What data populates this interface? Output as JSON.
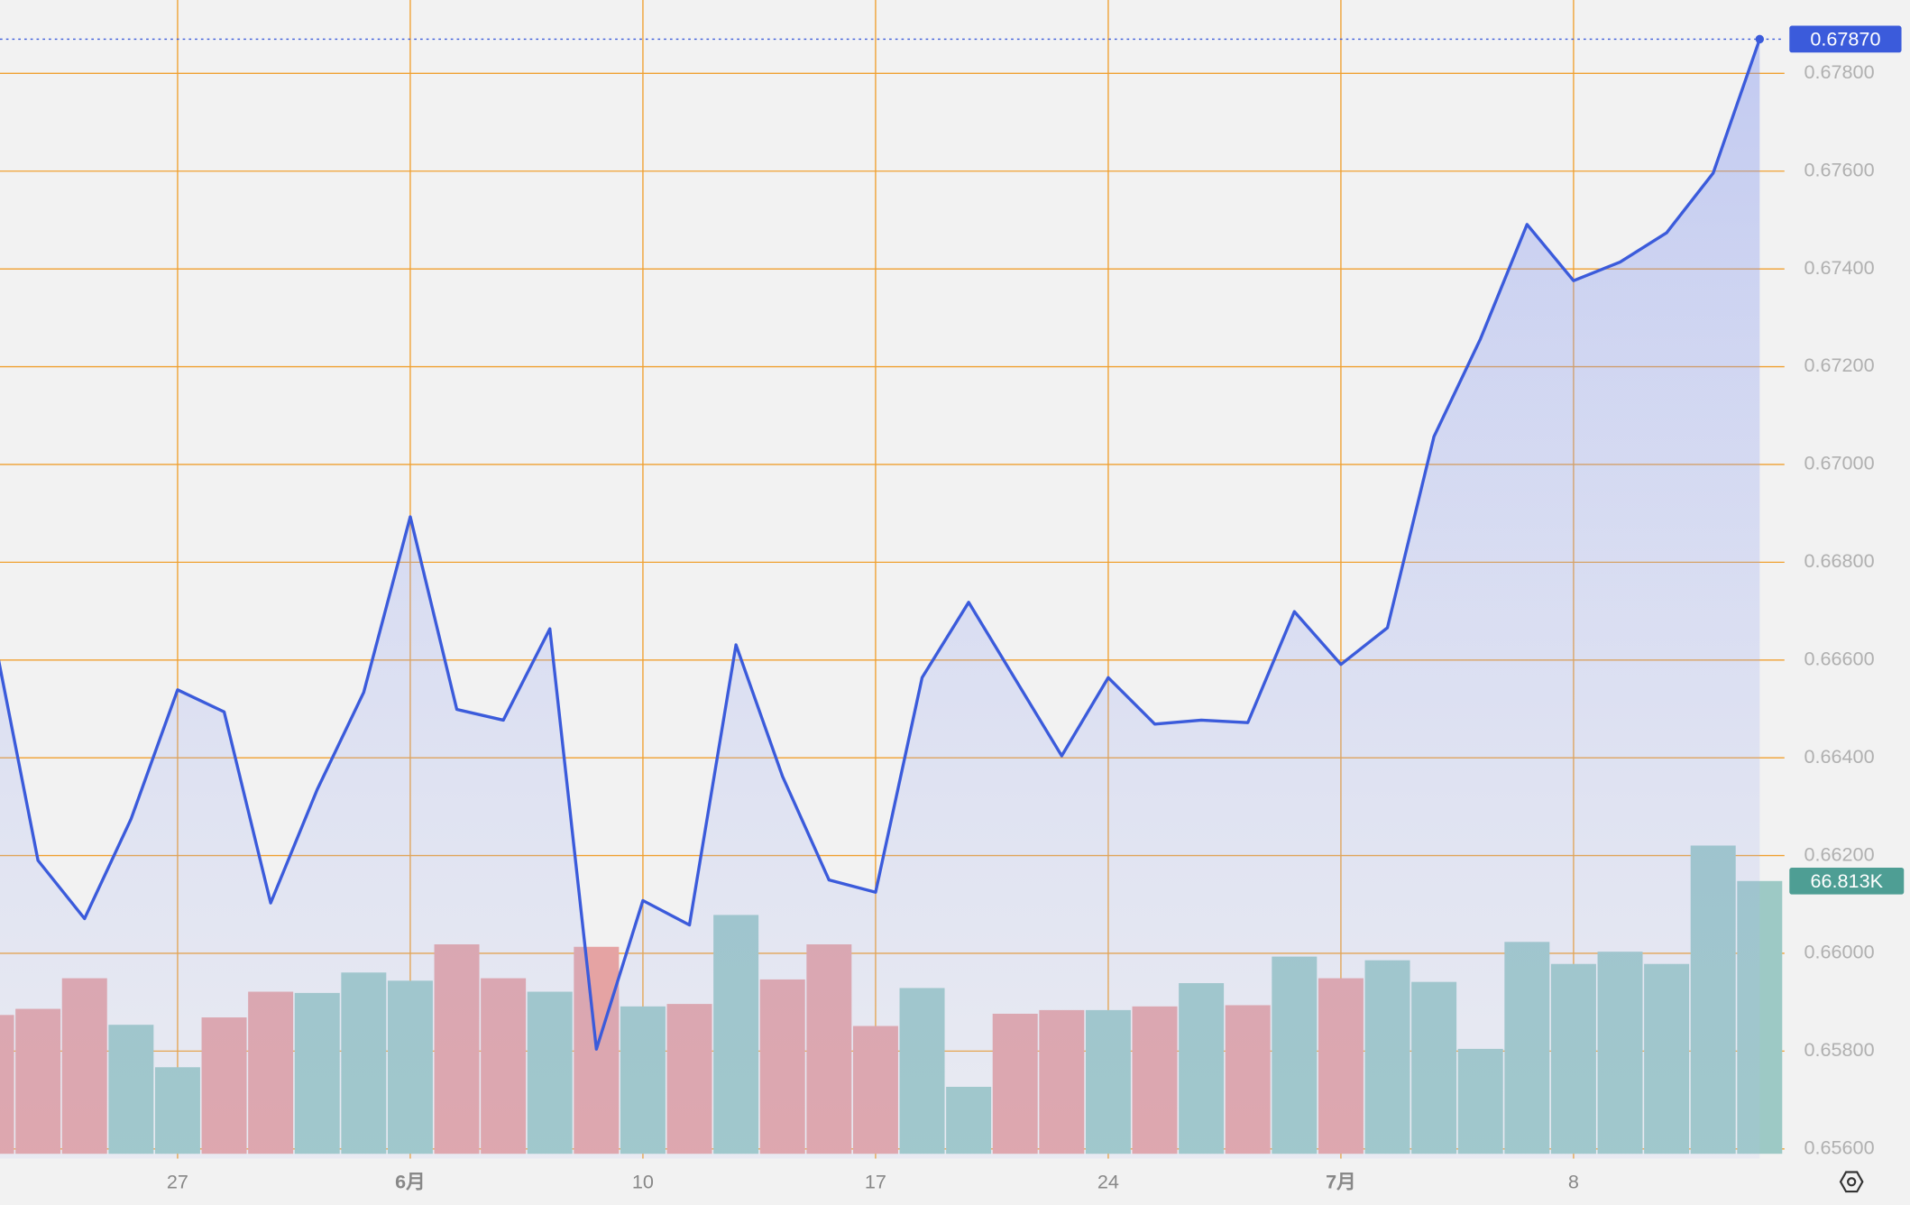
{
  "chart_data": {
    "type": "line",
    "categories": [
      null,
      null,
      null,
      null,
      "27",
      null,
      null,
      null,
      null,
      "6月",
      null,
      null,
      null,
      null,
      "10",
      null,
      null,
      null,
      null,
      "17",
      null,
      null,
      null,
      null,
      "24",
      null,
      null,
      null,
      null,
      "7月",
      null,
      null,
      null,
      null,
      "8",
      null,
      null,
      null,
      null
    ],
    "series": [
      {
        "color": "#3b5bdb",
        "values": [
          0.66674,
          0.6619,
          0.66071,
          0.66275,
          0.66539,
          0.66494,
          0.66103,
          0.66335,
          0.66534,
          0.66893,
          0.66499,
          0.66477,
          0.66664,
          0.65804,
          0.66108,
          0.66058,
          0.66631,
          0.66362,
          0.6615,
          0.66125,
          0.66564,
          0.66718,
          0.66561,
          0.66404,
          0.66564,
          0.66469,
          0.66477,
          0.66472,
          0.66699,
          0.66591,
          0.66666,
          0.67057,
          0.67257,
          0.67491,
          0.67376,
          0.67414,
          0.67474,
          0.67596,
          0.6787
        ]
      },
      {
        "axis": "volume",
        "values": [
          34.0,
          35.5,
          43.0,
          31.6,
          21.2,
          33.4,
          39.7,
          39.4,
          44.4,
          42.4,
          51.3,
          43.0,
          39.7,
          50.7,
          36.1,
          36.7,
          58.5,
          42.7,
          51.3,
          31.3,
          40.6,
          16.4,
          34.3,
          35.2,
          35.2,
          36.1,
          41.8,
          36.4,
          48.3,
          43.0,
          47.4,
          42.1,
          25.7,
          51.9,
          46.5,
          49.5,
          46.5,
          75.5,
          66.813
        ],
        "colors": [
          "#e5a3a3",
          "#e5a3a3",
          "#e5a3a3",
          "#9dc9c5",
          "#9dc9c5",
          "#e5a3a3",
          "#e5a3a3",
          "#9dc9c5",
          "#9dc9c5",
          "#9dc9c5",
          "#e5a3a3",
          "#e5a3a3",
          "#9dc9c5",
          "#e5a3a3",
          "#9dc9c5",
          "#e5a3a3",
          "#9dc9c5",
          "#e5a3a3",
          "#e5a3a3",
          "#e5a3a3",
          "#9dc9c5",
          "#9dc9c5",
          "#e5a3a3",
          "#e5a3a3",
          "#9dc9c5",
          "#e5a3a3",
          "#9dc9c5",
          "#e5a3a3",
          "#9dc9c5",
          "#e5a3a3",
          "#9dc9c5",
          "#9dc9c5",
          "#9dc9c5",
          "#9dc9c5",
          "#9dc9c5",
          "#9dc9c5",
          "#9dc9c5",
          "#9dc9c5",
          "#9dc9c5"
        ]
      }
    ],
    "ylim": [
      0.6558,
      0.6795
    ],
    "yticks": [
      {
        "value": 0.656,
        "label": "0.65600"
      },
      {
        "value": 0.658,
        "label": "0.65800"
      },
      {
        "value": 0.66,
        "label": "0.66000"
      },
      {
        "value": 0.662,
        "label": "0.66200"
      },
      {
        "value": 0.664,
        "label": "0.66400"
      },
      {
        "value": 0.666,
        "label": "0.66600"
      },
      {
        "value": 0.668,
        "label": "0.66800"
      },
      {
        "value": 0.67,
        "label": "0.67000"
      },
      {
        "value": 0.672,
        "label": "0.67200"
      },
      {
        "value": 0.674,
        "label": "0.67400"
      },
      {
        "value": 0.676,
        "label": "0.67600"
      },
      {
        "value": 0.678,
        "label": "0.67800"
      }
    ],
    "grid": true,
    "grid_color": "#f0a030",
    "price_label": {
      "value": 0.6787,
      "label": "0.67870"
    },
    "volume_label": {
      "value": 66.813,
      "label": "66.813K"
    }
  }
}
